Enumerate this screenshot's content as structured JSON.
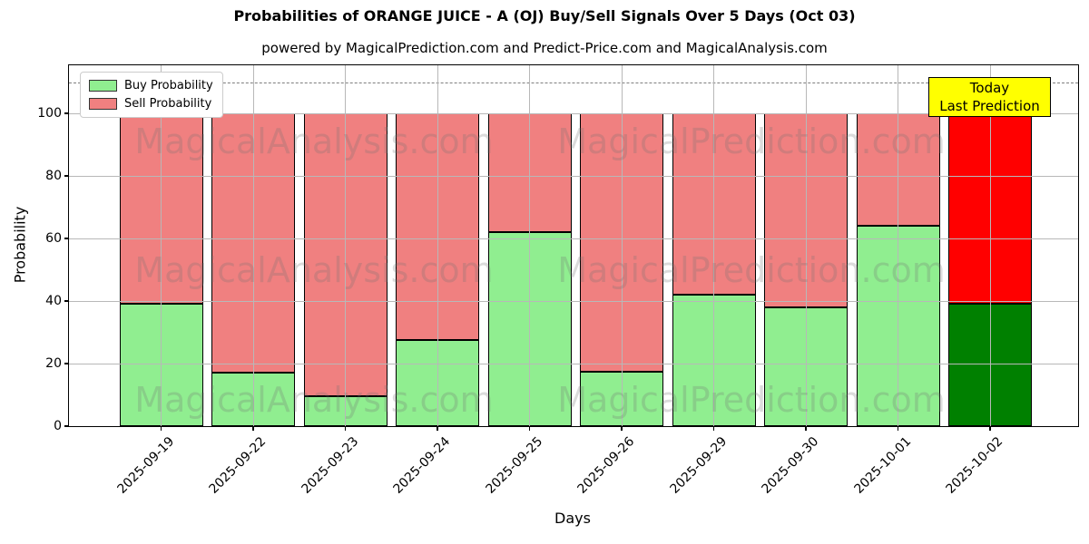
{
  "title": "Probabilities of ORANGE JUICE - A (OJ) Buy/Sell Signals Over 5 Days (Oct 03)",
  "subtitle": "powered by MagicalPrediction.com and Predict-Price.com and MagicalAnalysis.com",
  "legend": {
    "items": [
      {
        "label": "Buy Probability",
        "color": "#90ee90"
      },
      {
        "label": "Sell Probability",
        "color": "#f08080"
      }
    ]
  },
  "annotation_box": {
    "line1": "Today",
    "line2": "Last Prediction",
    "bg_color": "#ffff00"
  },
  "watermarks": {
    "left_text": "MagicalAnalysis.com",
    "right_text": "MagicalPrediction.com"
  },
  "axes": {
    "x_label": "Days",
    "y_label": "Probability",
    "y_ticks": [
      0,
      20,
      40,
      60,
      80,
      100
    ],
    "ylim": [
      0,
      115
    ],
    "dashed_line_y": 110,
    "grid": true,
    "legend_position": "upper left"
  },
  "chart_data": {
    "type": "bar",
    "stacked": true,
    "title": "Probabilities of ORANGE JUICE - A (OJ) Buy/Sell Signals Over 5 Days (Oct 03)",
    "xlabel": "Days",
    "ylabel": "Probability",
    "ylim": [
      0,
      115
    ],
    "categories": [
      "2025-09-19",
      "2025-09-22",
      "2025-09-23",
      "2025-09-24",
      "2025-09-25",
      "2025-09-26",
      "2025-09-29",
      "2025-09-30",
      "2025-10-01",
      "2025-10-02"
    ],
    "series": [
      {
        "name": "Buy Probability",
        "color": "#90ee90",
        "last_bar_color": "#008000",
        "values": [
          39,
          17,
          9.5,
          27.5,
          62,
          17.5,
          42,
          38,
          64,
          39
        ]
      },
      {
        "name": "Sell Probability",
        "color": "#f08080",
        "last_bar_color": "#ff0000",
        "values": [
          61,
          83,
          90.5,
          72.5,
          38,
          82.5,
          58,
          62,
          36,
          61
        ]
      }
    ],
    "bar_total": 100,
    "edge_color": "#000000"
  }
}
